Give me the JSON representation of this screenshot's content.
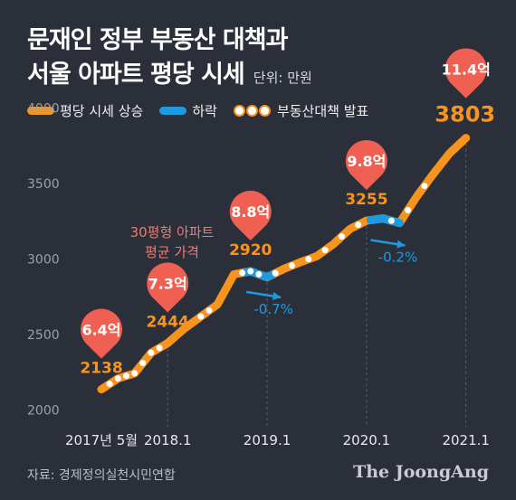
{
  "header": {
    "title_line1": "문재인 정부 부동산 대책과",
    "title_line2": "서울 아파트 평당 시세",
    "unit": "단위: 만원"
  },
  "legend": {
    "rise": "평당 시세 상승",
    "fall": "하락",
    "policy": "부동산대책 발표"
  },
  "colors": {
    "background": "#2b2f3a",
    "rise": "#f7941d",
    "fall": "#1e9be0",
    "pin": "#ef6052",
    "grid": "#5a5f6c"
  },
  "annotation_note": "30평형 아파트\n평균 가격",
  "source": "자료: 경제정의실천시민연합",
  "logo": "The JoongAng",
  "chart_data": {
    "type": "line",
    "title": "문재인 정부 부동산 대책과 서울 아파트 평당 시세",
    "unit": "만원",
    "x_ticks": [
      "2017년 5월",
      "2018.1",
      "2019.1",
      "2020.1",
      "2021.1"
    ],
    "y_ticks": [
      2000,
      2500,
      3000,
      3500,
      4000
    ],
    "ylim": [
      1950,
      4100
    ],
    "xlim_months": [
      0,
      46
    ],
    "series": [
      {
        "x": [
          0,
          2,
          4,
          6,
          8,
          10,
          12,
          14,
          16,
          18,
          20,
          22,
          24,
          26,
          28,
          30,
          32,
          34,
          36,
          38,
          40,
          42,
          44
        ],
        "y": [
          2138,
          2210,
          2244,
          2380,
          2444,
          2540,
          2620,
          2700,
          2900,
          2920,
          2880,
          2935,
          2980,
          3020,
          3100,
          3200,
          3255,
          3270,
          3240,
          3410,
          3560,
          3700,
          3803
        ]
      }
    ],
    "policy_dates": [
      1,
      2,
      3,
      4,
      5,
      6,
      7,
      12,
      13,
      17,
      18,
      19,
      21,
      23,
      25,
      27,
      29,
      31,
      35,
      37,
      39
    ],
    "declines": [
      {
        "from": 17.5,
        "to": 20.5,
        "change": "-0.7%"
      },
      {
        "from": 32.5,
        "to": 36,
        "change": "-0.2%"
      }
    ],
    "points": [
      {
        "x": 0,
        "value": "2138",
        "pin": "6.4억"
      },
      {
        "x": 8,
        "value": "2444",
        "pin": "7.3억"
      },
      {
        "x": 18,
        "value": "2920",
        "pin": "8.8억"
      },
      {
        "x": 32,
        "value": "3255",
        "pin": "9.8억"
      },
      {
        "x": 44,
        "value": "3803",
        "pin": "11.4억"
      }
    ]
  }
}
